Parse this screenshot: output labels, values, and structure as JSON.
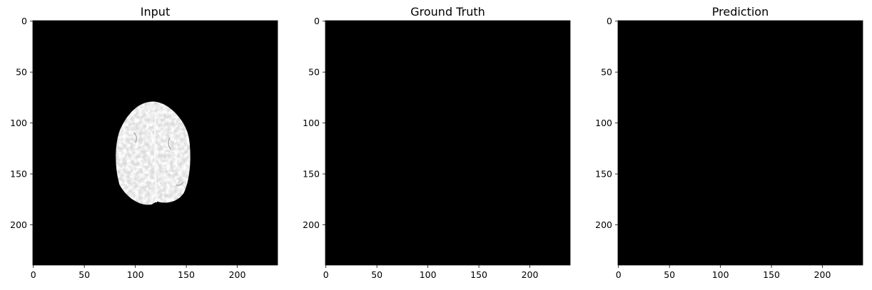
{
  "chart_data": [
    {
      "type": "heatmap",
      "title": "Input",
      "xlim": [
        -0.5,
        239.5
      ],
      "ylim": [
        239.5,
        -0.5
      ],
      "xticks": [
        0,
        50,
        100,
        150,
        200
      ],
      "yticks": [
        0,
        50,
        100,
        150,
        200
      ],
      "xtick_labels": [
        "0",
        "50",
        "100",
        "150",
        "200"
      ],
      "ytick_labels": [
        "0",
        "50",
        "100",
        "150",
        "200"
      ],
      "background": "#000000",
      "content": "grayscale brain MRI slice",
      "content_bounds": {
        "x": [
          80,
          155
        ],
        "y": [
          79,
          181
        ]
      }
    },
    {
      "type": "heatmap",
      "title": "Ground Truth",
      "xlim": [
        -0.5,
        239.5
      ],
      "ylim": [
        239.5,
        -0.5
      ],
      "xticks": [
        0,
        50,
        100,
        150,
        200
      ],
      "yticks": [
        0,
        50,
        100,
        150,
        200
      ],
      "xtick_labels": [
        "0",
        "50",
        "100",
        "150",
        "200"
      ],
      "ytick_labels": [
        "0",
        "50",
        "100",
        "150",
        "200"
      ],
      "background": "#000000",
      "content": "empty"
    },
    {
      "type": "heatmap",
      "title": "Prediction",
      "xlim": [
        -0.5,
        239.5
      ],
      "ylim": [
        239.5,
        -0.5
      ],
      "xticks": [
        0,
        50,
        100,
        150,
        200
      ],
      "yticks": [
        0,
        50,
        100,
        150,
        200
      ],
      "xtick_labels": [
        "0",
        "50",
        "100",
        "150",
        "200"
      ],
      "ytick_labels": [
        "0",
        "50",
        "100",
        "150",
        "200"
      ],
      "background": "#000000",
      "content": "empty"
    }
  ]
}
